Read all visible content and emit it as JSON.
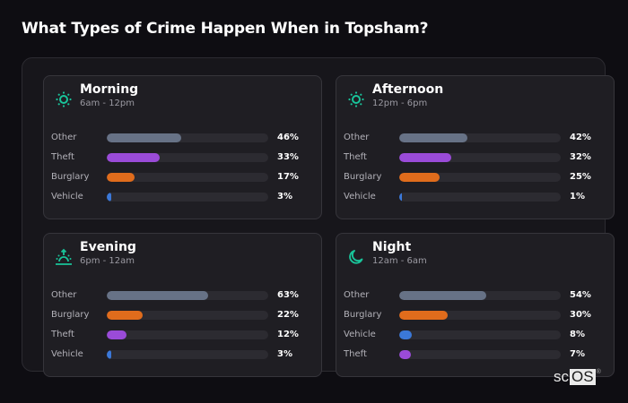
{
  "title": "What Types of Crime Happen When in Topsham?",
  "colors": {
    "Other": "#677286",
    "Theft": "#9a4bd8",
    "Burglary": "#e06c1c",
    "Vehicle": "#3b78d8",
    "icon_accent": "#19c49a"
  },
  "cards": [
    {
      "name": "Morning",
      "range": "6am - 12pm",
      "icon": "sun-icon",
      "rows": [
        {
          "label": "Other",
          "value": 46,
          "pct": "46%"
        },
        {
          "label": "Theft",
          "value": 33,
          "pct": "33%"
        },
        {
          "label": "Burglary",
          "value": 17,
          "pct": "17%"
        },
        {
          "label": "Vehicle",
          "value": 3,
          "pct": "3%"
        }
      ]
    },
    {
      "name": "Afternoon",
      "range": "12pm - 6pm",
      "icon": "sun-icon",
      "rows": [
        {
          "label": "Other",
          "value": 42,
          "pct": "42%"
        },
        {
          "label": "Theft",
          "value": 32,
          "pct": "32%"
        },
        {
          "label": "Burglary",
          "value": 25,
          "pct": "25%"
        },
        {
          "label": "Vehicle",
          "value": 1,
          "pct": "1%"
        }
      ]
    },
    {
      "name": "Evening",
      "range": "6pm - 12am",
      "icon": "sunset-icon",
      "rows": [
        {
          "label": "Other",
          "value": 63,
          "pct": "63%"
        },
        {
          "label": "Burglary",
          "value": 22,
          "pct": "22%"
        },
        {
          "label": "Theft",
          "value": 12,
          "pct": "12%"
        },
        {
          "label": "Vehicle",
          "value": 3,
          "pct": "3%"
        }
      ]
    },
    {
      "name": "Night",
      "range": "12am - 6am",
      "icon": "moon-icon",
      "rows": [
        {
          "label": "Other",
          "value": 54,
          "pct": "54%"
        },
        {
          "label": "Burglary",
          "value": 30,
          "pct": "30%"
        },
        {
          "label": "Vehicle",
          "value": 8,
          "pct": "8%"
        },
        {
          "label": "Theft",
          "value": 7,
          "pct": "7%"
        }
      ]
    }
  ],
  "logo": {
    "sc": "sc",
    "os": "OS",
    "reg": "®"
  },
  "chart_data": [
    {
      "type": "bar",
      "orientation": "horizontal",
      "title": "Morning",
      "subtitle": "6am - 12pm",
      "categories": [
        "Other",
        "Theft",
        "Burglary",
        "Vehicle"
      ],
      "values": [
        46,
        33,
        17,
        3
      ],
      "xlim": [
        0,
        100
      ],
      "unit": "%"
    },
    {
      "type": "bar",
      "orientation": "horizontal",
      "title": "Afternoon",
      "subtitle": "12pm - 6pm",
      "categories": [
        "Other",
        "Theft",
        "Burglary",
        "Vehicle"
      ],
      "values": [
        42,
        32,
        25,
        1
      ],
      "xlim": [
        0,
        100
      ],
      "unit": "%"
    },
    {
      "type": "bar",
      "orientation": "horizontal",
      "title": "Evening",
      "subtitle": "6pm - 12am",
      "categories": [
        "Other",
        "Burglary",
        "Theft",
        "Vehicle"
      ],
      "values": [
        63,
        22,
        12,
        3
      ],
      "xlim": [
        0,
        100
      ],
      "unit": "%"
    },
    {
      "type": "bar",
      "orientation": "horizontal",
      "title": "Night",
      "subtitle": "12am - 6am",
      "categories": [
        "Other",
        "Burglary",
        "Vehicle",
        "Theft"
      ],
      "values": [
        54,
        30,
        8,
        7
      ],
      "xlim": [
        0,
        100
      ],
      "unit": "%"
    }
  ]
}
